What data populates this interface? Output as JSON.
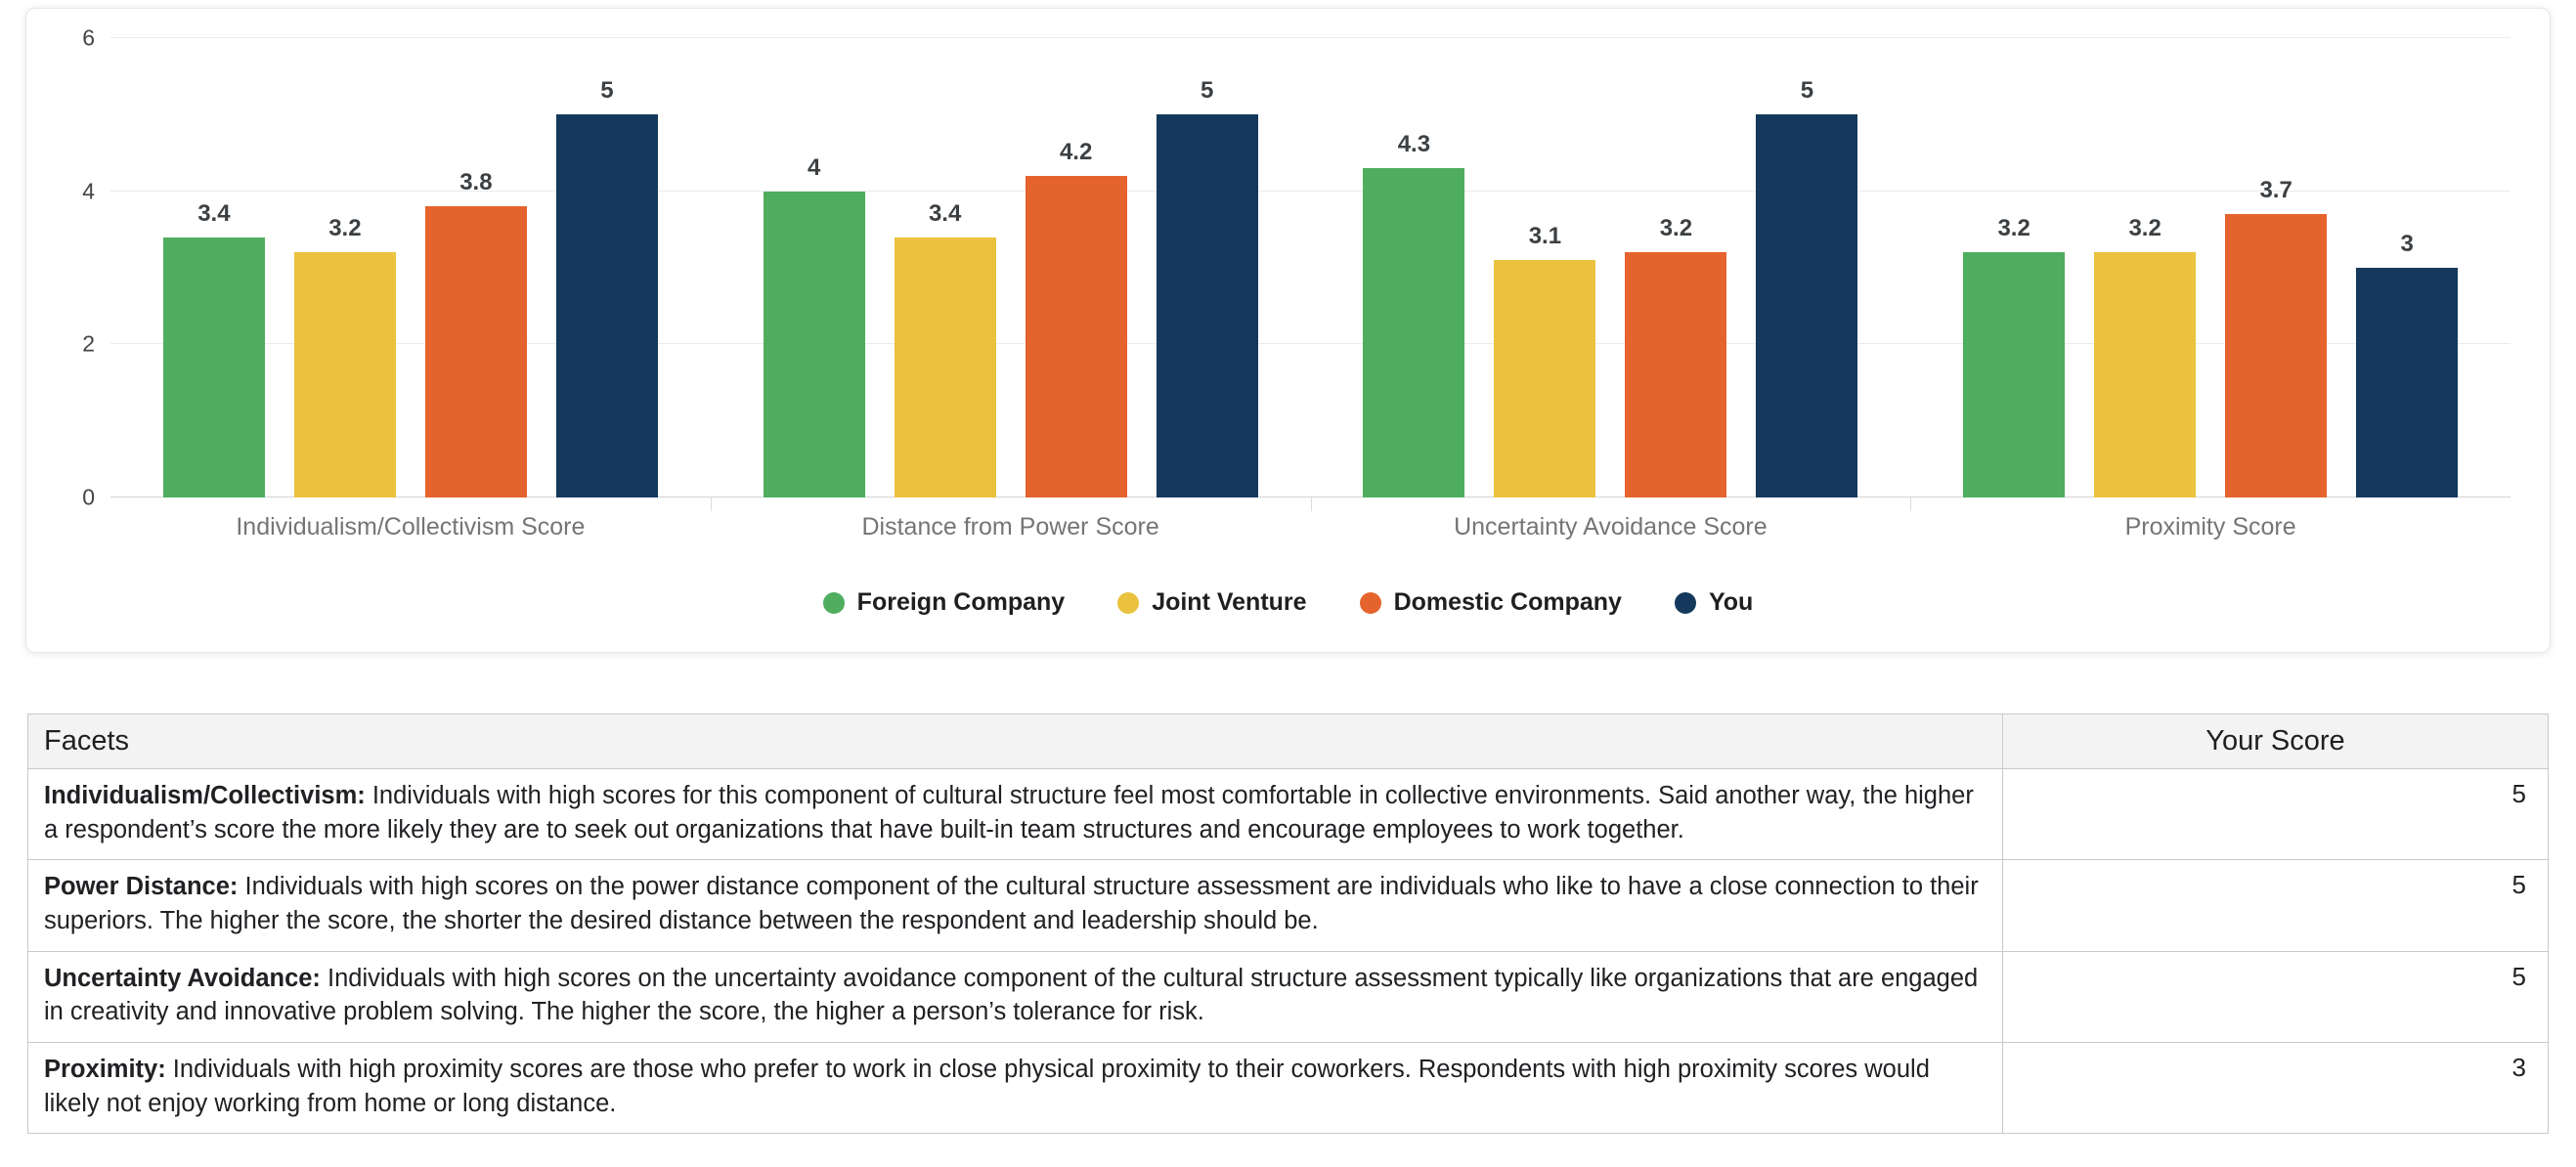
{
  "chart_data": {
    "type": "bar",
    "title": "",
    "categories": [
      "Individualism/Collectivism Score",
      "Distance from Power Score",
      "Uncertainty Avoidance Score",
      "Proximity Score"
    ],
    "series": [
      {
        "name": "Foreign Company",
        "color": "#4fad5f",
        "values": [
          3.4,
          4,
          4.3,
          3.2
        ]
      },
      {
        "name": "Joint Venture",
        "color": "#eac23e",
        "values": [
          3.2,
          3.4,
          3.1,
          3.2
        ]
      },
      {
        "name": "Domestic Company",
        "color": "#e5632c",
        "values": [
          3.8,
          4.2,
          3.2,
          3.7
        ]
      },
      {
        "name": "You",
        "color": "#14395c",
        "values": [
          5,
          5,
          5,
          3
        ]
      }
    ],
    "ylim": [
      0,
      6
    ],
    "yticks": [
      0,
      2,
      4,
      6
    ],
    "grid": true,
    "legend_position": "bottom"
  },
  "table": {
    "headers": {
      "facets": "Facets",
      "score": "Your Score"
    },
    "rows": [
      {
        "facet": "Individualism/Collectivism:",
        "description": "Individuals with high scores for this component of cultural structure feel most comfortable in collective environments. Said another way, the higher a respondent’s score the more likely they are to seek out organizations that have built-in team structures and encourage employees to work together.",
        "score": "5"
      },
      {
        "facet": "Power Distance:",
        "description": "Individuals with high scores on the power distance component of the cultural structure assessment are individuals who like to have a close connection to their superiors. The higher the score, the shorter the desired distance between the respondent and leadership should be.",
        "score": "5"
      },
      {
        "facet": "Uncertainty Avoidance:",
        "description": "Individuals with high scores on the uncertainty avoidance component of the cultural structure assessment typically like organizations that are engaged in creativity and innovative problem solving. The higher the score, the higher a person’s tolerance for risk.",
        "score": "5"
      },
      {
        "facet": "Proximity:",
        "description": "Individuals with high proximity scores are those who prefer to work in close physical proximity to their coworkers. Respondents with high proximity scores would likely not enjoy working from home or long distance.",
        "score": "3"
      }
    ]
  }
}
